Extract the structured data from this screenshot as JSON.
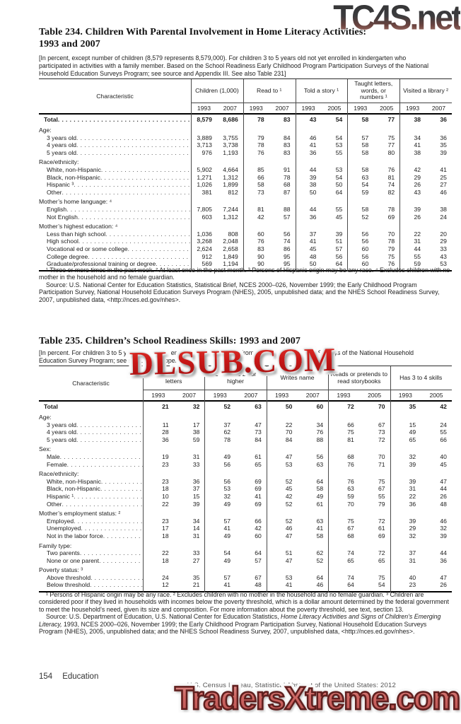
{
  "watermarks": {
    "top": "TC4S.net",
    "middle": "DLSUB.COM",
    "bottom": "TradersXtreme.com"
  },
  "footer": {
    "page_number": "154",
    "section": "Education",
    "source_line": "U.S. Census Bureau, Statistical Abstract of the United States: 2012"
  },
  "table234": {
    "title_line1": "Table 234. Children With Parental Involvement in Home Literacy Activities:",
    "title_line2": "1993 and 2007",
    "headnote": "[In percent, except number of children (8,579 represents 8,579,000).  For children 3 to 5 years old not yet enrolled in kindergarten who participated in activities with a family member. Based on the School Readiness Early Childhood Program Participation Surveys of the National Household Education Surveys Program; see source and Appendix III. See also Table 231]",
    "char_header": "Characteristic",
    "groups": [
      {
        "label": "Children (1,000)",
        "years": [
          "1993",
          "2007"
        ]
      },
      {
        "label": "Read to ¹",
        "years": [
          "1993",
          "2007"
        ]
      },
      {
        "label": "Told a story ¹",
        "years": [
          "1993",
          "2005"
        ]
      },
      {
        "label": "Taught letters, words, or numbers ¹",
        "years": [
          "1993",
          "2005"
        ]
      },
      {
        "label": "Visited a library ²",
        "years": [
          "1993",
          "2007"
        ]
      }
    ],
    "rows": [
      {
        "type": "total",
        "label": "Total",
        "dots": true,
        "values": [
          "8,579",
          "8,686",
          "78",
          "83",
          "43",
          "54",
          "58",
          "77",
          "38",
          "36"
        ]
      },
      {
        "type": "group",
        "label": "Age:"
      },
      {
        "type": "item",
        "label": "3 years old",
        "values": [
          "3,889",
          "3,755",
          "79",
          "84",
          "46",
          "54",
          "57",
          "75",
          "34",
          "36"
        ]
      },
      {
        "type": "item",
        "label": "4 years old",
        "values": [
          "3,713",
          "3,738",
          "78",
          "83",
          "41",
          "53",
          "58",
          "77",
          "41",
          "35"
        ]
      },
      {
        "type": "item",
        "label": "5 years old",
        "values": [
          "976",
          "1,193",
          "76",
          "83",
          "36",
          "55",
          "58",
          "80",
          "38",
          "39"
        ]
      },
      {
        "type": "group",
        "label": "Race/ethnicity:"
      },
      {
        "type": "item",
        "label": "White, non-Hispanic",
        "values": [
          "5,902",
          "4,664",
          "85",
          "91",
          "44",
          "53",
          "58",
          "76",
          "42",
          "41"
        ]
      },
      {
        "type": "item",
        "label": "Black, non-Hispanic",
        "values": [
          "1,271",
          "1,312",
          "66",
          "78",
          "39",
          "54",
          "63",
          "81",
          "29",
          "25"
        ]
      },
      {
        "type": "item",
        "label": "Hispanic ³",
        "values": [
          "1,026",
          "1,899",
          "58",
          "68",
          "38",
          "50",
          "54",
          "74",
          "26",
          "27"
        ]
      },
      {
        "type": "item",
        "label": "Other",
        "values": [
          "381",
          "812",
          "73",
          "87",
          "50",
          "64",
          "59",
          "82",
          "43",
          "46"
        ]
      },
      {
        "type": "group",
        "label": "Mother’s home language: ⁴"
      },
      {
        "type": "item",
        "label": "English",
        "values": [
          "7,805",
          "7,244",
          "81",
          "88",
          "44",
          "55",
          "58",
          "78",
          "39",
          "38"
        ]
      },
      {
        "type": "item",
        "label": "Not English",
        "values": [
          "603",
          "1,312",
          "42",
          "57",
          "36",
          "45",
          "52",
          "69",
          "26",
          "24"
        ]
      },
      {
        "type": "group",
        "label": "Mother’s highest education: ⁴"
      },
      {
        "type": "item",
        "label": "Less than high school",
        "values": [
          "1,036",
          "808",
          "60",
          "56",
          "37",
          "39",
          "56",
          "70",
          "22",
          "20"
        ]
      },
      {
        "type": "item",
        "label": "High school",
        "values": [
          "3,268",
          "2,048",
          "76",
          "74",
          "41",
          "51",
          "56",
          "78",
          "31",
          "29"
        ]
      },
      {
        "type": "item",
        "label": "Vocational ed or some college",
        "values": [
          "2,624",
          "2,658",
          "83",
          "86",
          "45",
          "57",
          "60",
          "79",
          "44",
          "33"
        ]
      },
      {
        "type": "item",
        "label": "College degree",
        "values": [
          "912",
          "1,849",
          "90",
          "95",
          "48",
          "56",
          "56",
          "75",
          "55",
          "43"
        ]
      },
      {
        "type": "item",
        "label": "Graduate/professional training or degree",
        "values": [
          "569",
          "1,194",
          "90",
          "95",
          "50",
          "64",
          "60",
          "76",
          "59",
          "53"
        ]
      }
    ],
    "footnote_text": "¹ Three or more times in the past week. ² At least once in the past month. ³ Persons of Hispanic origin may be any race. ⁴ Excludes children with no mother in the household and no female guardian.",
    "source_text": "Source: U.S. National Center for Education Statistics, Statistical Brief, NCES 2000–026, November 1999; the Early Childhood Program Participation Survey, National Household Education Surveys Program (NHES), 2005, unpublished data; and the NHES School Readiness Survey, 2007, unpublished data, <http://nces.ed.gov/nhes>."
  },
  "table235": {
    "title": "Table 235. Children’s School Readiness Skills: 1993 and 2007",
    "headnote": "[In percent. For children 3 to 5 years old not yet enrolled in kindergarten. From the School Readiness Surveys of the National Household Education Survey Program; see source and Appendix III]",
    "char_header": "Characteristic",
    "groups": [
      {
        "label": "Recognizes all letters",
        "years": [
          "1993",
          "2007"
        ]
      },
      {
        "label": "Counts to 20 or higher",
        "years": [
          "1993",
          "2007"
        ]
      },
      {
        "label": "Writes name",
        "years": [
          "1993",
          "2007"
        ]
      },
      {
        "label": "Reads or pretends to read storybooks",
        "years": [
          "1993",
          "2005"
        ]
      },
      {
        "label": "Has 3 to 4 skills",
        "years": [
          "1993",
          "2005"
        ]
      }
    ],
    "rows": [
      {
        "type": "total",
        "label": "Total",
        "dots": false,
        "values": [
          "21",
          "32",
          "52",
          "63",
          "50",
          "60",
          "72",
          "70",
          "35",
          "42"
        ]
      },
      {
        "type": "group",
        "label": "Age:"
      },
      {
        "type": "item",
        "label": "3 years old",
        "values": [
          "11",
          "17",
          "37",
          "47",
          "22",
          "34",
          "66",
          "67",
          "15",
          "24"
        ]
      },
      {
        "type": "item",
        "label": "4 years old",
        "values": [
          "28",
          "38",
          "62",
          "73",
          "70",
          "76",
          "75",
          "73",
          "49",
          "55"
        ]
      },
      {
        "type": "item",
        "label": "5 years old",
        "values": [
          "36",
          "59",
          "78",
          "84",
          "84",
          "88",
          "81",
          "72",
          "65",
          "66"
        ]
      },
      {
        "type": "group",
        "label": "Sex:"
      },
      {
        "type": "item",
        "label": "Male",
        "values": [
          "19",
          "31",
          "49",
          "61",
          "47",
          "56",
          "68",
          "70",
          "32",
          "40"
        ]
      },
      {
        "type": "item",
        "label": "Female",
        "values": [
          "23",
          "33",
          "56",
          "65",
          "53",
          "63",
          "76",
          "71",
          "39",
          "45"
        ]
      },
      {
        "type": "group",
        "label": "Race/ethnicity:"
      },
      {
        "type": "item",
        "label": "White, non-Hispanic",
        "values": [
          "23",
          "36",
          "56",
          "69",
          "52",
          "64",
          "76",
          "75",
          "39",
          "47"
        ]
      },
      {
        "type": "item",
        "label": "Black, non-Hispanic",
        "values": [
          "18",
          "37",
          "53",
          "69",
          "45",
          "58",
          "63",
          "67",
          "31",
          "44"
        ]
      },
      {
        "type": "item",
        "label": "Hispanic ¹",
        "values": [
          "10",
          "15",
          "32",
          "41",
          "42",
          "49",
          "59",
          "55",
          "22",
          "26"
        ]
      },
      {
        "type": "item",
        "label": "Other",
        "values": [
          "22",
          "39",
          "49",
          "69",
          "52",
          "61",
          "70",
          "79",
          "36",
          "48"
        ]
      },
      {
        "type": "group",
        "label": "Mother’s employment status: ²"
      },
      {
        "type": "item",
        "label": "Employed",
        "values": [
          "23",
          "34",
          "57",
          "66",
          "52",
          "63",
          "75",
          "72",
          "39",
          "46"
        ]
      },
      {
        "type": "item",
        "label": "Unemployed",
        "values": [
          "17",
          "14",
          "41",
          "42",
          "46",
          "41",
          "67",
          "61",
          "29",
          "32"
        ]
      },
      {
        "type": "item",
        "label": "Not in the labor force",
        "values": [
          "18",
          "31",
          "49",
          "60",
          "47",
          "58",
          "68",
          "69",
          "32",
          "39"
        ]
      },
      {
        "type": "group",
        "label": "Family type:"
      },
      {
        "type": "item",
        "label": "Two parents",
        "values": [
          "22",
          "33",
          "54",
          "64",
          "51",
          "62",
          "74",
          "72",
          "37",
          "44"
        ]
      },
      {
        "type": "item",
        "label": "None or one parent",
        "values": [
          "18",
          "27",
          "49",
          "57",
          "47",
          "52",
          "65",
          "65",
          "31",
          "36"
        ]
      },
      {
        "type": "group",
        "label": "Poverty status: ³"
      },
      {
        "type": "item",
        "label": "Above threshold",
        "values": [
          "24",
          "35",
          "57",
          "67",
          "53",
          "64",
          "74",
          "75",
          "40",
          "47"
        ]
      },
      {
        "type": "item",
        "label": "Below threshold",
        "values": [
          "12",
          "21",
          "41",
          "48",
          "41",
          "46",
          "64",
          "54",
          "23",
          "26"
        ]
      }
    ],
    "footnote_text": "¹ Persons of Hispanic origin may be any race. ² Excludes children with no mother in the household and no female guardian. ³ Children are considered poor if they lived in households with incomes below the poverty threshold, which is a dollar amount determined by the federal government to meet the household’s need, given its size and composition. For more information about the poverty threshold, see text, section 13.",
    "source_pre": "Source: U.S. Department of Education, U.S. National Center for Education Statistics, ",
    "source_italic": "Home Literacy Activities and Signs of Children’s Emerging Literacy,",
    "source_post": " 1993, NCES 2000–026, November 1999; the Early Childhood Program Participation Survey, National Household Education Surveys Program (NHES), 2005, unpublished data; and the NHES School Readiness Survey, 2007, unpublished data, <http://nces.ed.gov/nhes>."
  }
}
